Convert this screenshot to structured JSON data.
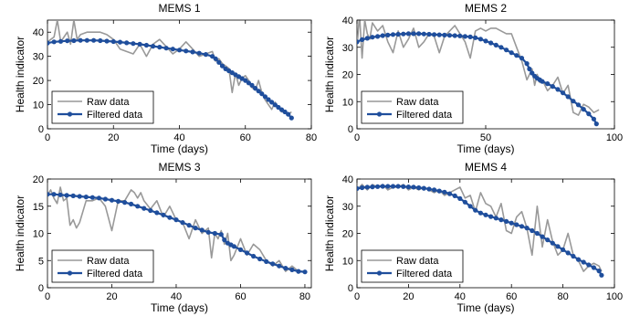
{
  "chart_data": [
    {
      "type": "line",
      "title": "MEMS 1",
      "xlabel": "Time (days)",
      "ylabel": "Health indicator",
      "xlim": [
        0,
        80
      ],
      "ylim": [
        0,
        45
      ],
      "xticks": [
        0,
        20,
        40,
        60,
        80
      ],
      "yticks": [
        0,
        10,
        20,
        30,
        40
      ],
      "legend": "bottom-left",
      "grid": false,
      "series": [
        {
          "name": "Raw data",
          "color": "#999999",
          "marker": "none",
          "x": [
            0,
            1,
            2,
            3,
            4,
            5,
            6,
            7,
            8,
            9,
            10,
            12,
            14,
            16,
            18,
            20,
            22,
            24,
            26,
            28,
            30,
            32,
            34,
            36,
            38,
            40,
            42,
            44,
            46,
            48,
            50,
            51,
            52,
            53,
            54,
            55,
            56,
            57,
            58,
            59,
            60,
            61,
            62,
            63,
            64,
            65,
            66,
            67,
            68,
            69,
            70,
            71,
            72,
            73,
            74
          ],
          "y": [
            36,
            37,
            38,
            45,
            36,
            38,
            40,
            35,
            45,
            37,
            39,
            40,
            40,
            40,
            39,
            37,
            33,
            32,
            31,
            35,
            30,
            35,
            37,
            34,
            31,
            33,
            36,
            33,
            30,
            31,
            32,
            28,
            29,
            27,
            26,
            25,
            15,
            23,
            18,
            21,
            22,
            20,
            17,
            16,
            20,
            15,
            12,
            10,
            8,
            11,
            9,
            7,
            7,
            6,
            7
          ]
        },
        {
          "name": "Filtered data",
          "color": "#1f4e9c",
          "marker": "circle",
          "x": [
            0,
            2,
            4,
            6,
            8,
            10,
            12,
            14,
            16,
            18,
            20,
            22,
            24,
            26,
            28,
            30,
            32,
            34,
            36,
            38,
            40,
            42,
            44,
            46,
            48,
            50,
            51,
            52,
            53,
            54,
            55,
            56,
            57,
            58,
            59,
            60,
            61,
            62,
            63,
            64,
            65,
            66,
            67,
            68,
            69,
            70,
            71,
            72,
            73,
            74
          ],
          "y": [
            35.5,
            36,
            36.2,
            36.4,
            36.5,
            36.6,
            36.6,
            36.6,
            36.5,
            36.3,
            36.1,
            35.9,
            35.6,
            35.3,
            35,
            34.6,
            34.2,
            33.8,
            33.4,
            33,
            32.6,
            32.2,
            31.8,
            31.3,
            30.8,
            30,
            29,
            27.5,
            26,
            24.8,
            24,
            23.2,
            22.4,
            21.6,
            20.8,
            20,
            19,
            18,
            16.8,
            15.6,
            14.5,
            13.3,
            12.1,
            11,
            9.9,
            8.9,
            7.9,
            7,
            6,
            4.5
          ]
        }
      ]
    },
    {
      "type": "line",
      "title": "MEMS 2",
      "xlabel": "Time (days)",
      "ylabel": "Health indicator",
      "xlim": [
        0,
        100
      ],
      "ylim": [
        0,
        40
      ],
      "xticks": [
        0,
        50,
        100
      ],
      "yticks": [
        0,
        10,
        20,
        30,
        40
      ],
      "legend": "bottom-left",
      "grid": false,
      "series": [
        {
          "name": "Raw data",
          "color": "#999999",
          "marker": "none",
          "x": [
            0,
            1,
            2,
            3,
            4,
            5,
            6,
            8,
            10,
            12,
            14,
            16,
            18,
            20,
            22,
            24,
            26,
            28,
            30,
            32,
            34,
            36,
            38,
            40,
            42,
            44,
            46,
            48,
            50,
            52,
            54,
            56,
            58,
            60,
            62,
            64,
            66,
            68,
            69,
            70,
            71,
            72,
            74,
            76,
            78,
            80,
            82,
            84,
            86,
            88,
            90,
            92,
            94
          ],
          "y": [
            30,
            42,
            26,
            40,
            35,
            33,
            39,
            36,
            38,
            32,
            28,
            36,
            30,
            33,
            37,
            30,
            32,
            35,
            34,
            28,
            34,
            36,
            38,
            35,
            32,
            26,
            36,
            37,
            36,
            37,
            37,
            36,
            35,
            35,
            30,
            25,
            18,
            22,
            16,
            20,
            17,
            18,
            14,
            16,
            19,
            13,
            16,
            6,
            5,
            9,
            8,
            6,
            7
          ]
        },
        {
          "name": "Filtered data",
          "color": "#1f4e9c",
          "marker": "circle",
          "x": [
            0,
            2,
            4,
            6,
            8,
            10,
            12,
            14,
            16,
            18,
            20,
            22,
            24,
            26,
            28,
            30,
            32,
            34,
            36,
            38,
            40,
            42,
            44,
            46,
            48,
            50,
            52,
            54,
            56,
            58,
            60,
            62,
            64,
            66,
            67,
            68,
            69,
            70,
            71,
            72,
            74,
            76,
            78,
            80,
            82,
            84,
            86,
            88,
            90,
            92,
            93
          ],
          "y": [
            32,
            32.8,
            33.3,
            33.7,
            34,
            34.3,
            34.5,
            34.7,
            34.8,
            34.9,
            35,
            35,
            35,
            34.9,
            34.8,
            34.7,
            34.6,
            34.5,
            34.4,
            34.3,
            34.2,
            34,
            33.8,
            33.5,
            33,
            32.3,
            31.6,
            30.8,
            30,
            29,
            28,
            27,
            26,
            24,
            22,
            20.5,
            19.4,
            18.6,
            18,
            17.4,
            16.6,
            15.6,
            14.5,
            13.2,
            11.8,
            10.2,
            8.8,
            7.2,
            5.5,
            3.6,
            1.8
          ]
        }
      ]
    },
    {
      "type": "line",
      "title": "MEMS 3",
      "xlabel": "Time (days)",
      "ylabel": "Health indicator",
      "xlim": [
        0,
        82
      ],
      "ylim": [
        0,
        20
      ],
      "xticks": [
        0,
        20,
        40,
        60,
        80
      ],
      "yticks": [
        0,
        5,
        10,
        15,
        20
      ],
      "legend": "bottom-left",
      "grid": false,
      "series": [
        {
          "name": "Raw data",
          "color": "#999999",
          "marker": "none",
          "x": [
            0,
            1,
            2,
            3,
            4,
            5,
            6,
            7,
            8,
            9,
            10,
            12,
            14,
            16,
            18,
            20,
            22,
            24,
            26,
            27,
            28,
            29,
            30,
            32,
            34,
            36,
            38,
            40,
            42,
            44,
            46,
            48,
            50,
            51,
            52,
            53,
            54,
            55,
            56,
            57,
            58,
            60,
            62,
            64,
            66,
            68,
            70,
            72,
            74,
            76,
            78,
            80
          ],
          "y": [
            17,
            18,
            16.5,
            15.5,
            18.5,
            16,
            16.5,
            11.5,
            12.5,
            11,
            12,
            16,
            16,
            16.5,
            15,
            10.5,
            16,
            16,
            18,
            17.5,
            16.5,
            17.5,
            16,
            14.5,
            16,
            13,
            15,
            12.5,
            12,
            9,
            12.5,
            10,
            11,
            5.5,
            10,
            9,
            10.5,
            8,
            10,
            5,
            6,
            9,
            6,
            8,
            7,
            5,
            4,
            5,
            3,
            4,
            3,
            3
          ]
        },
        {
          "name": "Filtered data",
          "color": "#1f4e9c",
          "marker": "circle",
          "x": [
            0,
            2,
            4,
            6,
            8,
            10,
            12,
            14,
            16,
            18,
            20,
            22,
            24,
            26,
            28,
            30,
            32,
            34,
            36,
            38,
            40,
            42,
            44,
            46,
            48,
            50,
            52,
            54,
            55,
            56,
            57,
            58,
            60,
            62,
            64,
            66,
            68,
            70,
            72,
            74,
            76,
            78,
            80
          ],
          "y": [
            17.2,
            17.2,
            17.1,
            17,
            16.9,
            16.8,
            16.7,
            16.6,
            16.5,
            16.3,
            16.1,
            15.9,
            15.7,
            15.4,
            15,
            14.6,
            14.2,
            13.8,
            13.4,
            12.9,
            12.5,
            12,
            11.5,
            11,
            10.6,
            10.2,
            10,
            9.8,
            8.8,
            8.2,
            7.9,
            7.6,
            7,
            6.4,
            5.8,
            5.3,
            4.8,
            4.4,
            4,
            3.6,
            3.3,
            3,
            2.9
          ]
        }
      ]
    },
    {
      "type": "line",
      "title": "MEMS 4",
      "xlabel": "Time (days)",
      "ylabel": "Health indicator",
      "xlim": [
        0,
        100
      ],
      "ylim": [
        0,
        40
      ],
      "xticks": [
        0,
        20,
        40,
        60,
        80,
        100
      ],
      "yticks": [
        0,
        10,
        20,
        30,
        40
      ],
      "legend": "bottom-left",
      "grid": false,
      "series": [
        {
          "name": "Raw data",
          "color": "#999999",
          "marker": "none",
          "x": [
            0,
            2,
            4,
            6,
            8,
            10,
            12,
            14,
            16,
            18,
            20,
            22,
            24,
            26,
            28,
            30,
            32,
            34,
            36,
            38,
            40,
            42,
            44,
            46,
            48,
            50,
            52,
            54,
            56,
            58,
            60,
            62,
            64,
            66,
            68,
            70,
            72,
            74,
            76,
            78,
            80,
            82,
            84,
            86,
            88,
            90,
            92,
            94,
            95
          ],
          "y": [
            36,
            38,
            36,
            38,
            37,
            38,
            36,
            37,
            37,
            38,
            36,
            37,
            36,
            37,
            36,
            35,
            36,
            34,
            35,
            36,
            37,
            33,
            34,
            28,
            35,
            31,
            30,
            26,
            31,
            21,
            20,
            26,
            28,
            22,
            12,
            30,
            15,
            25,
            17,
            12,
            14,
            20,
            12,
            10,
            6,
            8,
            9,
            8,
            6
          ]
        },
        {
          "name": "Filtered data",
          "color": "#1f4e9c",
          "marker": "circle",
          "x": [
            0,
            2,
            4,
            6,
            8,
            10,
            12,
            14,
            16,
            18,
            20,
            22,
            24,
            26,
            28,
            30,
            32,
            34,
            36,
            38,
            40,
            42,
            44,
            46,
            48,
            50,
            52,
            54,
            56,
            58,
            60,
            62,
            64,
            66,
            68,
            70,
            72,
            74,
            76,
            78,
            80,
            82,
            84,
            86,
            88,
            90,
            92,
            94,
            95
          ],
          "y": [
            36.5,
            36.8,
            37,
            37.1,
            37.2,
            37.3,
            37.3,
            37.3,
            37.3,
            37.2,
            37.1,
            37,
            36.8,
            36.6,
            36.3,
            36,
            35.6,
            35.2,
            34.6,
            33.8,
            32.8,
            31.5,
            30,
            28.5,
            27.5,
            26.8,
            26.2,
            25.6,
            25,
            24.4,
            23.8,
            23.2,
            22.6,
            22,
            21,
            20,
            18.8,
            17.6,
            16.4,
            15.2,
            14,
            12.8,
            11.6,
            10.4,
            9.4,
            8.4,
            7.4,
            6.2,
            4.6
          ]
        }
      ]
    }
  ]
}
